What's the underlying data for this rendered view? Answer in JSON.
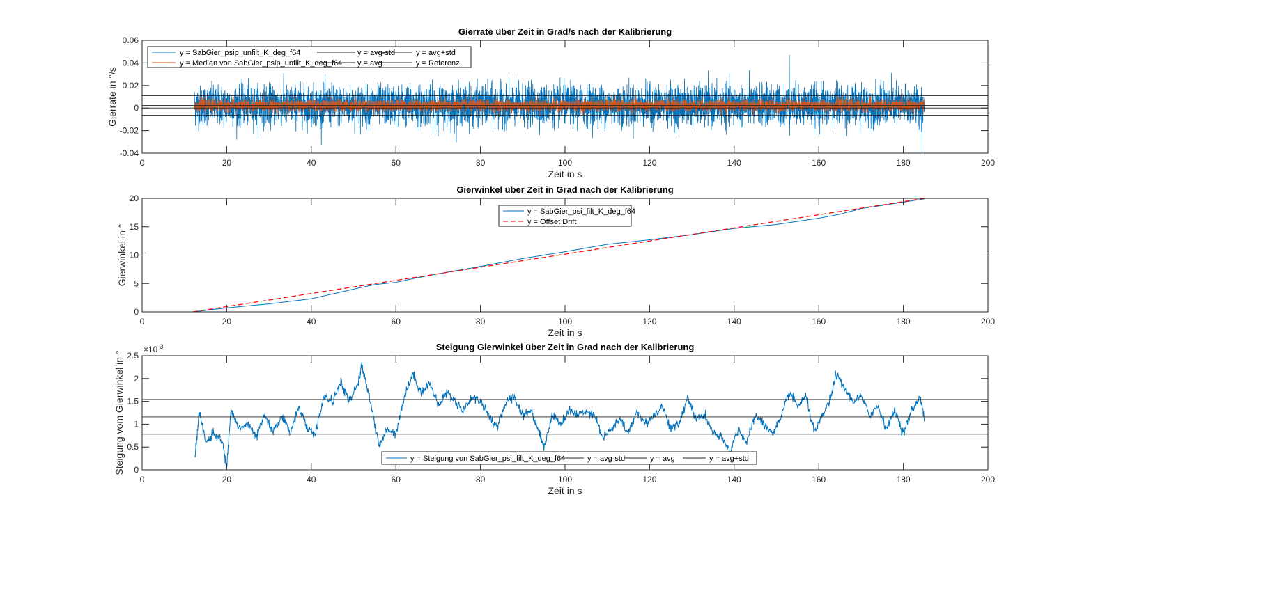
{
  "chart_data": [
    {
      "type": "line",
      "title": "Gierrate über Zeit in Grad/s nach der Kalibrierung",
      "xlabel": "Zeit in s",
      "ylabel": "Gierrate  in  °/s",
      "xlim": [
        0,
        200
      ],
      "ylim": [
        -0.04,
        0.06
      ],
      "xticks": [
        "0",
        "20",
        "40",
        "60",
        "80",
        "100",
        "120",
        "140",
        "160",
        "180",
        "200"
      ],
      "yticks": [
        "-0.04",
        "-0.02",
        "0",
        "0.02",
        "0.04",
        "0.06"
      ],
      "legend_placement": "top-left",
      "series": [
        {
          "name": "y = SabGier_psip_unfilt_K_deg_f64",
          "color": "#0072BD",
          "x_range": [
            12.3,
            185
          ],
          "mean": 0.0023,
          "std": 0.0087,
          "min": -0.04,
          "max": 0.047,
          "kind": "noise"
        },
        {
          "name": "y = Median von SabGier_psip_unfilt_K_deg_f64",
          "color": "#D95319",
          "x_range": [
            12.3,
            185
          ],
          "mean": 0.0023,
          "std": 0.0028,
          "kind": "noise"
        },
        {
          "name": "y = avg-std",
          "color": "#262626",
          "value": -0.0063,
          "kind": "hline"
        },
        {
          "name": "y = avg",
          "color": "#262626",
          "value": 0.0023,
          "kind": "hline"
        },
        {
          "name": "y = avg+std",
          "color": "#262626",
          "value": 0.011,
          "kind": "hline"
        },
        {
          "name": "y = Referenz",
          "color": "#262626",
          "value": 0,
          "kind": "hline"
        }
      ]
    },
    {
      "type": "line",
      "title": "Gierwinkel über Zeit in Grad nach der Kalibrierung",
      "xlabel": "Zeit in s",
      "ylabel": "Gierwinkel in °",
      "xlim": [
        0,
        200
      ],
      "ylim": [
        0,
        20
      ],
      "xticks": [
        "0",
        "20",
        "40",
        "60",
        "80",
        "100",
        "120",
        "140",
        "160",
        "180",
        "200"
      ],
      "yticks": [
        "0",
        "5",
        "10",
        "15",
        "20"
      ],
      "legend_placement": "top-center",
      "series": [
        {
          "name": "y = SabGier_psi_filt_K_deg_f64",
          "color": "#0072BD",
          "dash": false,
          "x": [
            12,
            20,
            30,
            40,
            50,
            55,
            60,
            65,
            70,
            80,
            90,
            100,
            110,
            120,
            130,
            140,
            150,
            160,
            165,
            170,
            185
          ],
          "y": [
            0,
            0.7,
            1.4,
            2.3,
            4.0,
            4.8,
            5.2,
            6.0,
            6.7,
            8.0,
            9.4,
            10.6,
            11.9,
            12.7,
            13.6,
            14.7,
            15.4,
            16.5,
            17.2,
            18.2,
            19.9
          ]
        },
        {
          "name": "y = Offset Drift",
          "color": "#FF0000",
          "dash": true,
          "x": [
            12,
            185
          ],
          "y": [
            0,
            20
          ]
        }
      ]
    },
    {
      "type": "line",
      "title": "Steigung Gierwinkel über Zeit in Grad nach der Kalibrierung",
      "xlabel": "Zeit in s",
      "ylabel": "Steigung vom Gierwinkel in °",
      "exponent_label": "×10",
      "exponent": "-3",
      "xlim": [
        0,
        200
      ],
      "ylim": [
        0,
        2.5
      ],
      "xticks": [
        "0",
        "20",
        "40",
        "60",
        "80",
        "100",
        "120",
        "140",
        "160",
        "180",
        "200"
      ],
      "yticks": [
        "0",
        "0.5",
        "1",
        "1.5",
        "2",
        "2.5"
      ],
      "legend_placement": "bottom-center",
      "series": [
        {
          "name": "y = Steigung von SabGier_psi_filt_K_deg_f64",
          "color": "#0072BD",
          "kind": "line",
          "x": [
            12.5,
            13.5,
            15,
            17,
            19,
            20,
            21,
            23,
            25,
            27,
            29,
            31,
            33,
            35,
            37,
            39,
            41,
            43,
            45,
            47,
            49,
            51,
            52,
            54,
            56,
            58,
            60,
            62,
            64,
            66,
            68,
            70,
            72,
            74,
            76,
            78,
            80,
            82,
            84,
            86,
            88,
            90,
            92,
            94,
            95,
            97,
            99,
            101,
            103,
            105,
            107,
            109,
            111,
            113,
            115,
            117,
            119,
            121,
            123,
            125,
            127,
            129,
            131,
            133,
            135,
            137,
            139,
            141,
            143,
            145,
            147,
            149,
            151,
            153,
            155,
            157,
            159,
            161,
            163,
            164,
            166,
            168,
            170,
            172,
            174,
            176,
            178,
            180,
            182,
            184,
            185
          ],
          "y": [
            0.25,
            1.3,
            0.6,
            0.8,
            0.6,
            0.05,
            1.3,
            0.9,
            1.0,
            0.7,
            1.2,
            0.8,
            1.2,
            0.8,
            1.4,
            0.9,
            0.8,
            1.6,
            1.5,
            1.9,
            1.5,
            1.85,
            2.3,
            1.5,
            0.5,
            0.9,
            0.8,
            1.6,
            2.1,
            1.7,
            1.9,
            1.4,
            1.7,
            1.5,
            1.3,
            1.6,
            1.5,
            1.2,
            0.9,
            1.5,
            1.6,
            1.2,
            1.3,
            0.8,
            0.5,
            1.2,
            1.0,
            1.3,
            1.2,
            1.3,
            1.2,
            0.7,
            0.9,
            1.1,
            0.8,
            1.3,
            1.0,
            1.2,
            1.4,
            0.9,
            1.0,
            1.6,
            1.1,
            1.2,
            0.8,
            0.7,
            0.4,
            0.9,
            0.6,
            1.2,
            1.0,
            0.8,
            1.1,
            1.7,
            1.4,
            1.6,
            0.8,
            1.2,
            1.6,
            2.1,
            1.8,
            1.5,
            1.6,
            1.2,
            1.4,
            0.9,
            1.3,
            0.8,
            1.3,
            1.6,
            1.1
          ]
        },
        {
          "name": "y = avg-std",
          "color": "#262626",
          "value": 0.78,
          "kind": "hline"
        },
        {
          "name": "y = avg",
          "color": "#262626",
          "value": 1.16,
          "kind": "hline"
        },
        {
          "name": "y = avg+std",
          "color": "#262626",
          "value": 1.54,
          "kind": "hline"
        }
      ]
    }
  ]
}
